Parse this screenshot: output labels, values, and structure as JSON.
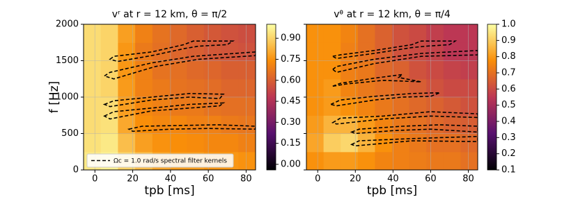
{
  "chart_data": [
    {
      "type": "heatmap",
      "title": "vʳ at r = 12 km, θ = π/2",
      "xlabel": "tpb [ms]",
      "ylabel": "f [Hz]",
      "xlim": [
        -6,
        85
      ],
      "xticks": [
        0,
        20,
        40,
        60,
        80
      ],
      "ylim": [
        0,
        2000
      ],
      "yticks": [
        0,
        500,
        1000,
        1500,
        2000
      ],
      "show_ytick_labels": true,
      "grid": true,
      "colormap": [
        "#000004",
        "#57106e",
        "#bc3754",
        "#f98e09",
        "#fcffa4"
      ],
      "clim": [
        -0.04,
        1.0
      ],
      "cticks": [
        {
          "value": 0,
          "label": "0.00"
        },
        0.15,
        {
          "value": 0.3,
          "label": "0.30"
        },
        0.45,
        {
          "value": 0.6,
          "label": "0.60"
        },
        0.75,
        {
          "value": 0.9,
          "label": "0.90"
        }
      ],
      "z": [
        [
          0.95,
          0.97,
          0.9,
          0.85,
          0.8,
          0.78,
          0.78,
          0.76,
          0.76,
          0.75
        ],
        [
          0.93,
          0.95,
          0.85,
          0.78,
          0.75,
          0.74,
          0.73,
          0.72,
          0.72,
          0.7
        ],
        [
          0.92,
          0.93,
          0.8,
          0.74,
          0.72,
          0.72,
          0.7,
          0.7,
          0.68,
          0.67
        ],
        [
          0.92,
          0.92,
          0.78,
          0.72,
          0.7,
          0.68,
          0.68,
          0.66,
          0.65,
          0.65
        ],
        [
          0.92,
          0.9,
          0.77,
          0.7,
          0.68,
          0.66,
          0.65,
          0.64,
          0.62,
          0.62
        ],
        [
          0.92,
          0.9,
          0.76,
          0.7,
          0.66,
          0.65,
          0.63,
          0.62,
          0.6,
          0.6
        ],
        [
          0.92,
          0.9,
          0.76,
          0.68,
          0.65,
          0.62,
          0.6,
          0.58,
          0.57,
          0.56
        ],
        [
          0.92,
          0.9,
          0.78,
          0.7,
          0.66,
          0.63,
          0.6,
          0.58,
          0.56,
          0.55
        ]
      ],
      "contour_color": "#000000",
      "contours": [
        {
          "x": [
            8,
            10,
            30,
            47,
            52,
            73,
            70,
            55,
            48,
            30,
            12,
            8
          ],
          "y": [
            1520,
            1560,
            1620,
            1720,
            1770,
            1770,
            1720,
            1700,
            1670,
            1570,
            1490,
            1520
          ]
        },
        {
          "x": [
            5,
            8,
            30,
            52,
            85,
            85,
            55,
            32,
            10,
            5
          ],
          "y": [
            1290,
            1340,
            1470,
            1560,
            1620,
            1570,
            1520,
            1420,
            1250,
            1290
          ]
        },
        {
          "x": [
            5,
            10,
            30,
            50,
            68,
            66,
            50,
            30,
            8,
            5
          ],
          "y": [
            900,
            950,
            1000,
            1050,
            1040,
            980,
            1000,
            960,
            870,
            900
          ]
        },
        {
          "x": [
            5,
            10,
            30,
            50,
            68,
            66,
            50,
            30,
            8,
            5
          ],
          "y": [
            740,
            800,
            850,
            900,
            920,
            880,
            850,
            810,
            700,
            740
          ]
        },
        {
          "x": [
            18,
            25,
            45,
            65,
            85,
            85,
            60,
            40,
            20,
            18
          ],
          "y": [
            560,
            600,
            610,
            620,
            600,
            560,
            570,
            560,
            530,
            560
          ]
        }
      ],
      "legend": "lower left",
      "contour_label": "Ωc = 1.0 rad/s spectral filter kernels"
    },
    {
      "type": "heatmap",
      "title": "vᶿ at r = 12 km, θ = π/4",
      "xlabel": "tpb [ms]",
      "xlim": [
        -6,
        85
      ],
      "xticks": [
        0,
        20,
        40,
        60,
        80
      ],
      "ylim": [
        0,
        2000
      ],
      "yticks": [
        0,
        500,
        1000,
        1500,
        2000
      ],
      "show_ytick_labels": false,
      "grid": true,
      "colormap": [
        "#000004",
        "#57106e",
        "#bc3754",
        "#f98e09",
        "#fcffa4"
      ],
      "clim": [
        0.1,
        1.0
      ],
      "cticks": [
        0.1,
        0.2,
        0.3,
        0.4,
        0.5,
        0.6,
        0.7,
        0.8,
        0.9,
        {
          "value": 1,
          "label": "1.0"
        }
      ],
      "z": [
        [
          0.78,
          0.8,
          0.8,
          0.78,
          0.75,
          0.74,
          0.73,
          0.72,
          0.72,
          0.7
        ],
        [
          0.82,
          0.9,
          0.92,
          0.85,
          0.78,
          0.74,
          0.72,
          0.7,
          0.7,
          0.68
        ],
        [
          0.8,
          0.85,
          0.85,
          0.8,
          0.75,
          0.72,
          0.7,
          0.68,
          0.66,
          0.65
        ],
        [
          0.78,
          0.8,
          0.78,
          0.75,
          0.72,
          0.7,
          0.68,
          0.66,
          0.64,
          0.62
        ],
        [
          0.78,
          0.8,
          0.75,
          0.72,
          0.7,
          0.68,
          0.65,
          0.62,
          0.6,
          0.6
        ],
        [
          0.78,
          0.78,
          0.74,
          0.72,
          0.68,
          0.66,
          0.62,
          0.6,
          0.58,
          0.57
        ],
        [
          0.78,
          0.78,
          0.74,
          0.7,
          0.66,
          0.62,
          0.6,
          0.58,
          0.55,
          0.55
        ],
        [
          0.78,
          0.78,
          0.75,
          0.7,
          0.66,
          0.62,
          0.6,
          0.57,
          0.55,
          0.55
        ]
      ],
      "contour_color": "#000000",
      "contours": [
        {
          "x": [
            8,
            12,
            30,
            50,
            55,
            73,
            70,
            58,
            50,
            30,
            10,
            8
          ],
          "y": [
            1560,
            1580,
            1640,
            1720,
            1770,
            1770,
            1720,
            1700,
            1680,
            1600,
            1530,
            1560
          ]
        },
        {
          "x": [
            8,
            10,
            30,
            55,
            85,
            85,
            55,
            30,
            10,
            8
          ],
          "y": [
            1380,
            1420,
            1520,
            1600,
            1640,
            1580,
            1560,
            1460,
            1340,
            1380
          ]
        },
        {
          "x": [
            8,
            12,
            30,
            45,
            43,
            55,
            35,
            15,
            8
          ],
          "y": [
            1150,
            1190,
            1260,
            1310,
            1270,
            1210,
            1230,
            1180,
            1150
          ]
        },
        {
          "x": [
            7,
            12,
            30,
            50,
            65,
            60,
            45,
            30,
            10,
            7
          ],
          "y": [
            900,
            960,
            1010,
            1050,
            1060,
            1010,
            1000,
            960,
            880,
            900
          ]
        },
        {
          "x": [
            8,
            12,
            35,
            60,
            85,
            85,
            60,
            35,
            10,
            8
          ],
          "y": [
            650,
            710,
            740,
            800,
            770,
            720,
            740,
            700,
            630,
            650
          ]
        },
        {
          "x": [
            18,
            22,
            45,
            65,
            85,
            85,
            60,
            40,
            20,
            18
          ],
          "y": [
            520,
            560,
            600,
            620,
            600,
            520,
            560,
            540,
            500,
            520
          ]
        },
        {
          "x": [
            18,
            22,
            50,
            85,
            85,
            50,
            20,
            18
          ],
          "y": [
            350,
            400,
            430,
            460,
            390,
            400,
            330,
            350
          ]
        }
      ]
    }
  ]
}
